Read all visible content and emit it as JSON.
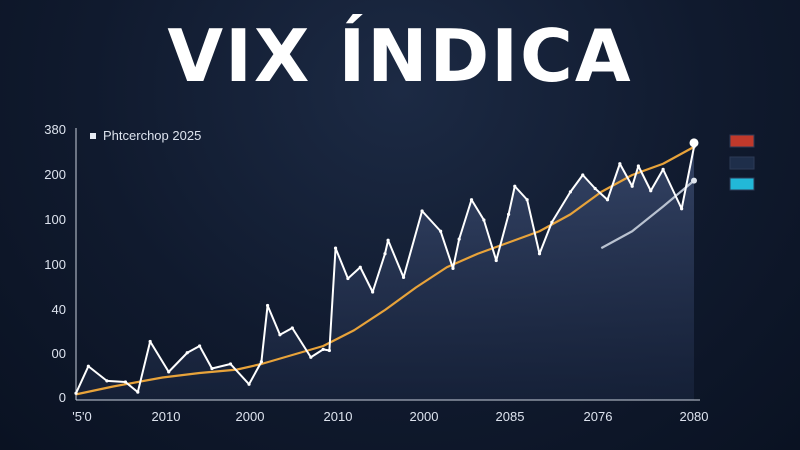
{
  "title": "VIX ÍNDICA",
  "chart_data": {
    "type": "line",
    "legend": {
      "text": "Phtcerchop 2025",
      "placement": "top-left"
    },
    "y_tick_labels": [
      "0",
      "00",
      "40",
      "100",
      "100",
      "200",
      "380"
    ],
    "x_tick_labels": [
      "'5'0",
      "2010",
      "2000",
      "2010",
      "2000",
      "2085",
      "2076",
      "2080"
    ],
    "series": [
      {
        "color": "#ffffff",
        "x": [
          0,
          0.2,
          0.5,
          0.8,
          1.0,
          1.2,
          1.5,
          1.8,
          2.0,
          2.2,
          2.5,
          2.8,
          3.0,
          3.1,
          3.3,
          3.5,
          3.8,
          4.0,
          4.1,
          4.2,
          4.4,
          4.6,
          4.8,
          5.0,
          5.05,
          5.3,
          5.6,
          5.9,
          6.1,
          6.2,
          6.4,
          6.6,
          6.8,
          7.0,
          7.1,
          7.3,
          7.5,
          7.7,
          8.0,
          8.2,
          8.4,
          8.6,
          8.8,
          9.0,
          9.1,
          9.3,
          9.5,
          9.8,
          10.0
        ],
        "y": [
          6,
          30,
          17,
          16,
          7,
          52,
          25,
          42,
          48,
          28,
          32,
          14,
          34,
          84,
          58,
          64,
          38,
          45,
          44,
          135,
          108,
          118,
          96,
          130,
          142,
          109,
          168,
          150,
          117,
          143,
          178,
          160,
          124,
          165,
          190,
          178,
          130,
          158,
          185,
          200,
          188,
          178,
          210,
          190,
          208,
          186,
          205,
          170,
          225
        ]
      },
      {
        "color": "#e8a33a",
        "x": [
          0,
          0.6,
          1.4,
          2.0,
          2.6,
          3.0,
          3.5,
          4.0,
          4.5,
          5.0,
          5.5,
          6.0,
          6.5,
          7.0,
          7.5,
          8.0,
          8.5,
          9.0,
          9.5,
          10.0
        ],
        "y": [
          5,
          12,
          20,
          24,
          27,
          32,
          40,
          48,
          62,
          80,
          100,
          118,
          130,
          140,
          150,
          165,
          185,
          200,
          210,
          225
        ]
      },
      {
        "color": "#b9c2d0",
        "x": [
          8.5,
          9.0,
          9.5,
          10.0
        ],
        "y": [
          135,
          150,
          172,
          195
        ]
      }
    ],
    "legend_swatches": [
      "#c0392b",
      "#1e2e4a",
      "#22b8d8"
    ]
  }
}
